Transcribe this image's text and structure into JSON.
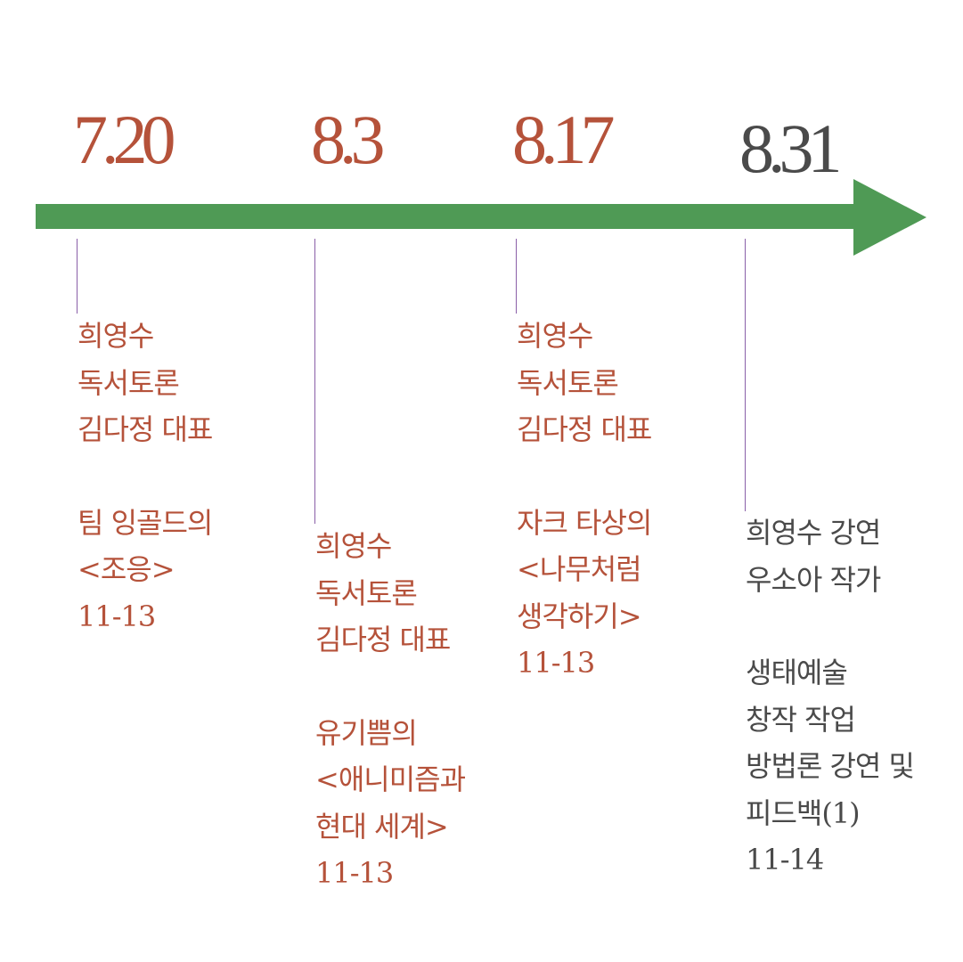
{
  "colors": {
    "accent": "#b5523a",
    "muted": "#4a4a4a",
    "arrow": "#4f9a55",
    "tick": "#8a5fa8"
  },
  "timeline": [
    {
      "date": "7.20",
      "lines": [
        "희영수",
        "독서토론",
        "김다정 대표"
      ],
      "title_lines": [
        "팀 잉골드의",
        "<조응>"
      ],
      "pages": "11-13"
    },
    {
      "date": "8.3",
      "lines": [
        "희영수",
        "독서토론",
        "김다정 대표"
      ],
      "title_lines": [
        "유기쁨의",
        "<애니미즘과",
        "현대 세계>"
      ],
      "pages": "11-13"
    },
    {
      "date": "8.17",
      "lines": [
        "희영수",
        "독서토론",
        "김다정 대표"
      ],
      "title_lines": [
        "자크 타상의",
        "<나무처럼",
        "생각하기>"
      ],
      "pages": "11-13"
    },
    {
      "date": "8.31",
      "lines": [
        "희영수 강연",
        "우소아 작가"
      ],
      "title_lines": [
        "생태예술",
        "창작 작업",
        "방법론 강연 및",
        "피드백(1)"
      ],
      "pages": "11-14"
    }
  ]
}
